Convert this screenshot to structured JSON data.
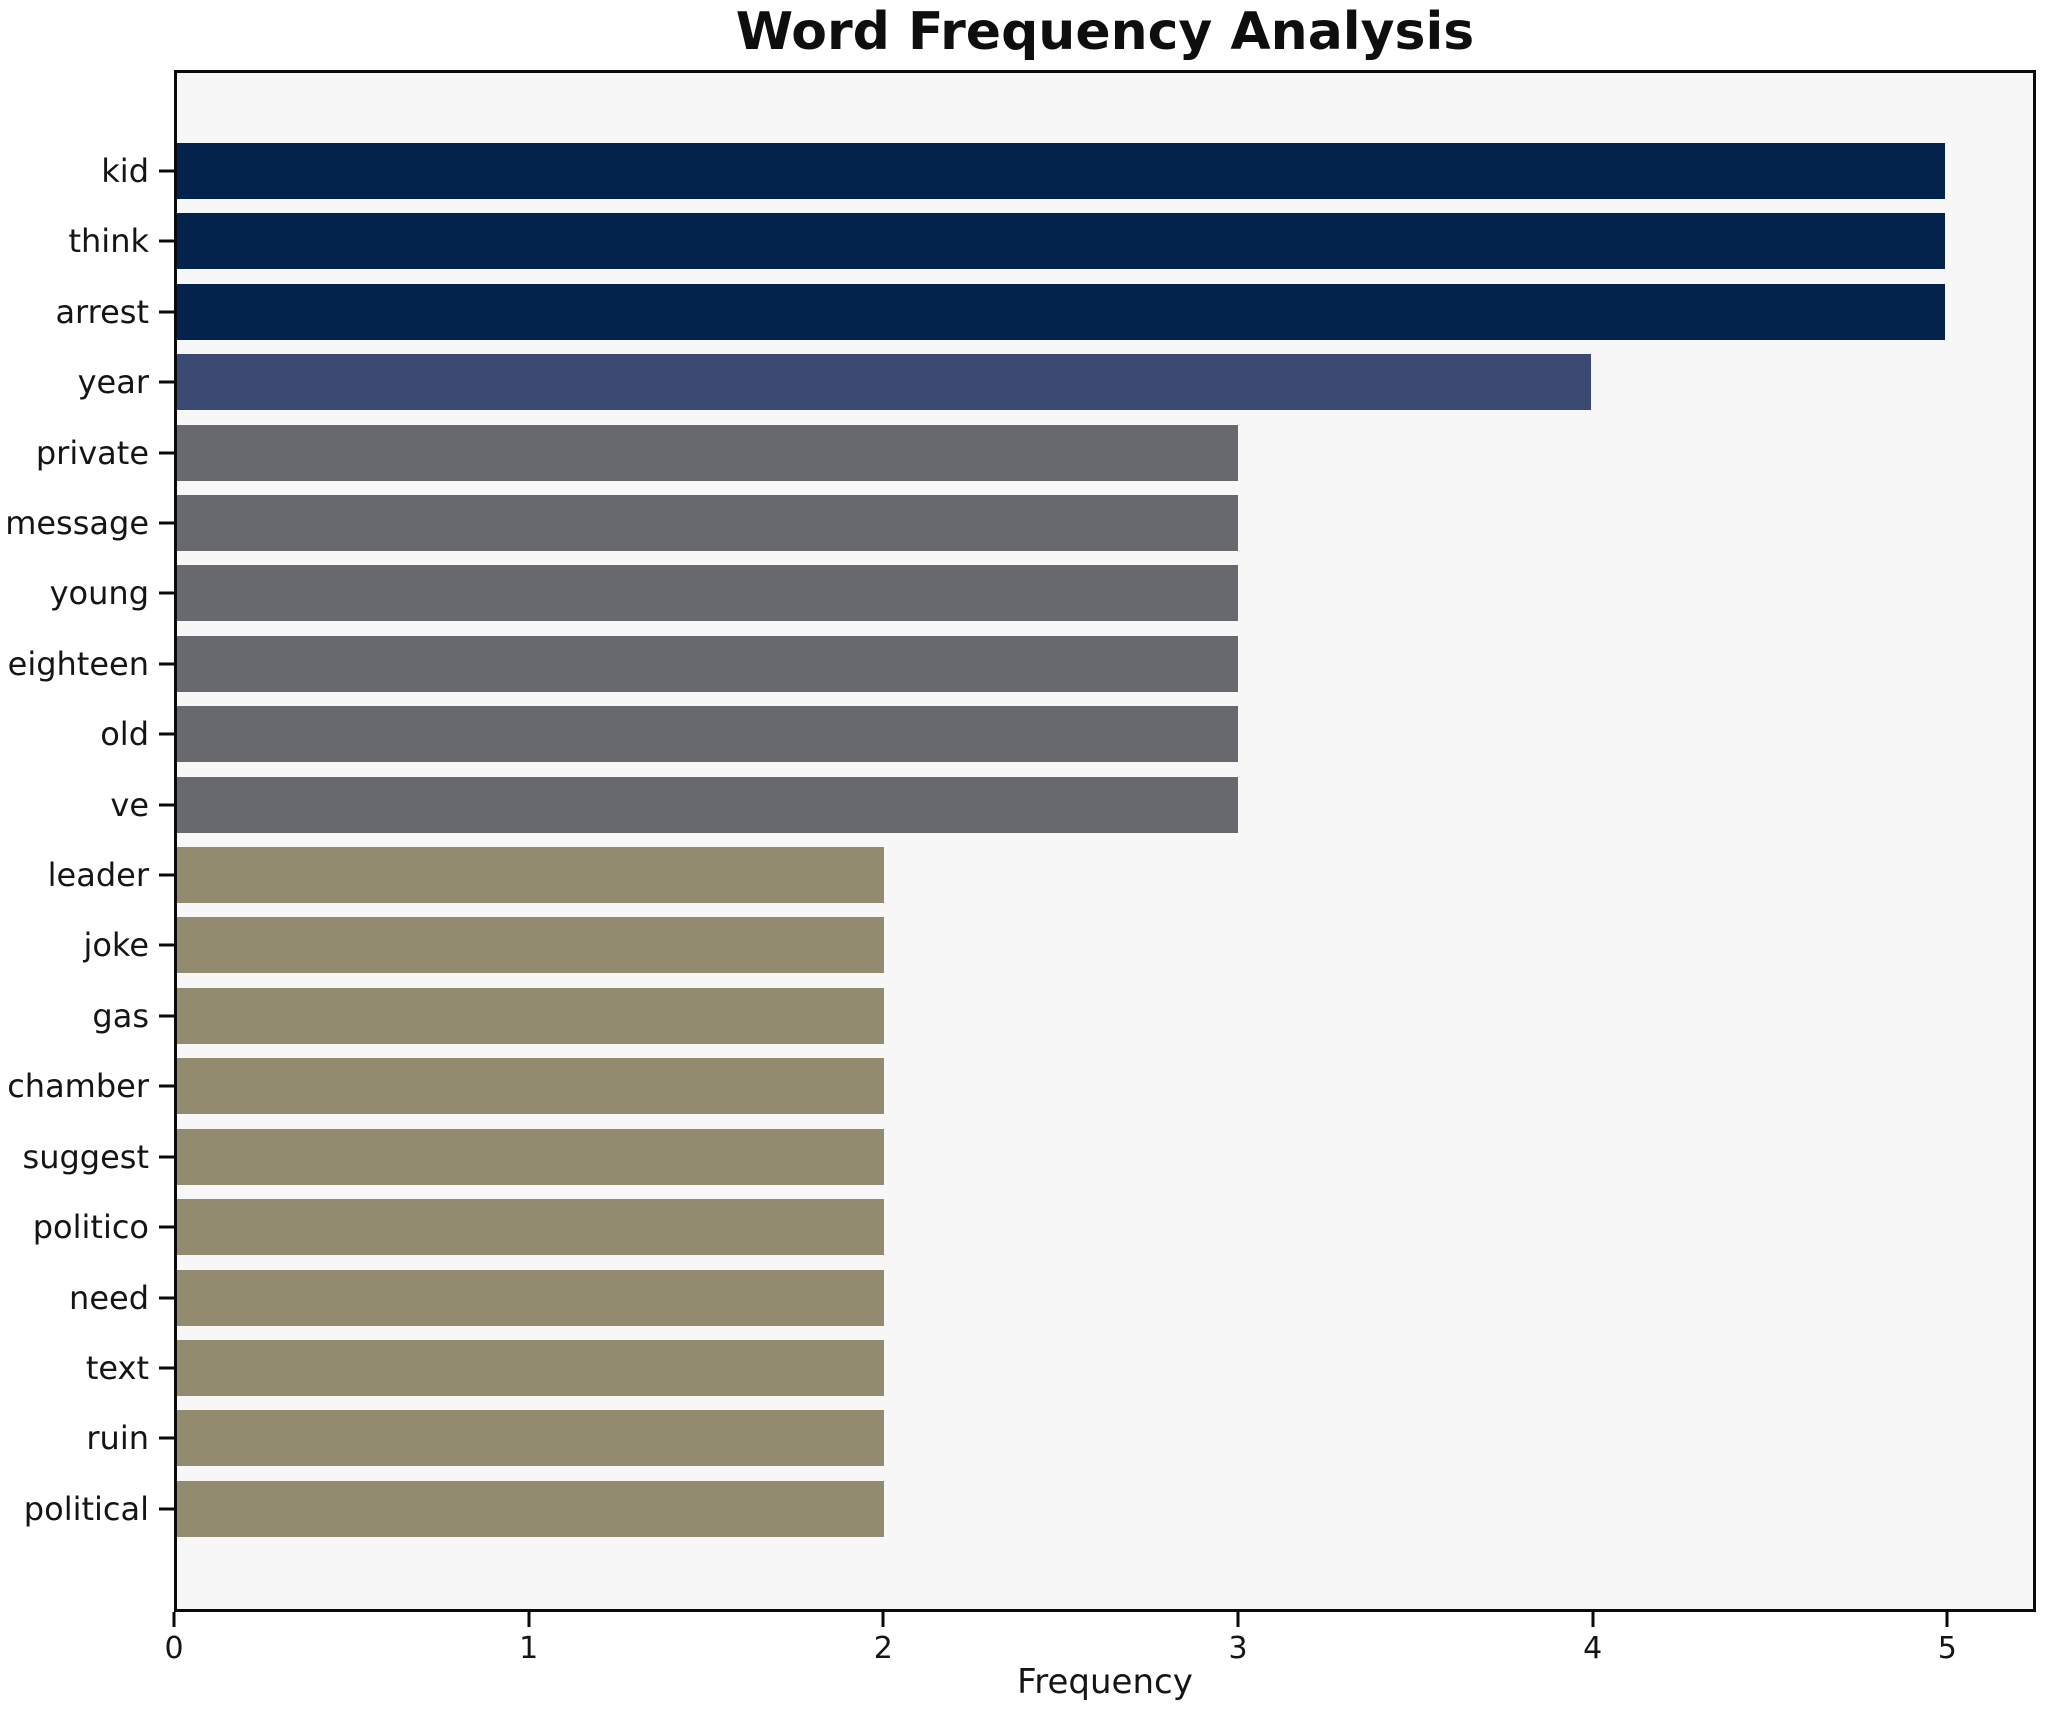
{
  "title": "Word Frequency Analysis",
  "chart_data": {
    "type": "bar",
    "orientation": "horizontal",
    "title": "Word Frequency Analysis",
    "xlabel": "Frequency",
    "ylabel": "",
    "categories": [
      "kid",
      "think",
      "arrest",
      "year",
      "private",
      "message",
      "young",
      "eighteen",
      "old",
      "ve",
      "leader",
      "joke",
      "gas",
      "chamber",
      "suggest",
      "politico",
      "need",
      "text",
      "ruin",
      "political"
    ],
    "values": [
      5,
      5,
      5,
      4,
      3,
      3,
      3,
      3,
      3,
      3,
      2,
      2,
      2,
      2,
      2,
      2,
      2,
      2,
      2,
      2
    ],
    "bar_colors": [
      "#04234c",
      "#04234c",
      "#04234c",
      "#3b4a73",
      "#68696f",
      "#68696f",
      "#68696f",
      "#68696f",
      "#68696f",
      "#68696f",
      "#938b70",
      "#938b70",
      "#938b70",
      "#938b70",
      "#938b70",
      "#938b70",
      "#938b70",
      "#938b70",
      "#938b70",
      "#938b70"
    ],
    "xlim": [
      0,
      5.25
    ],
    "x_ticks": [
      0,
      1,
      2,
      3,
      4,
      5
    ],
    "grid": false,
    "legend_position": "none",
    "plot_background": "#f6f7f6",
    "figure_background": "#ffffff",
    "spine_color": "#0a0a0a"
  }
}
